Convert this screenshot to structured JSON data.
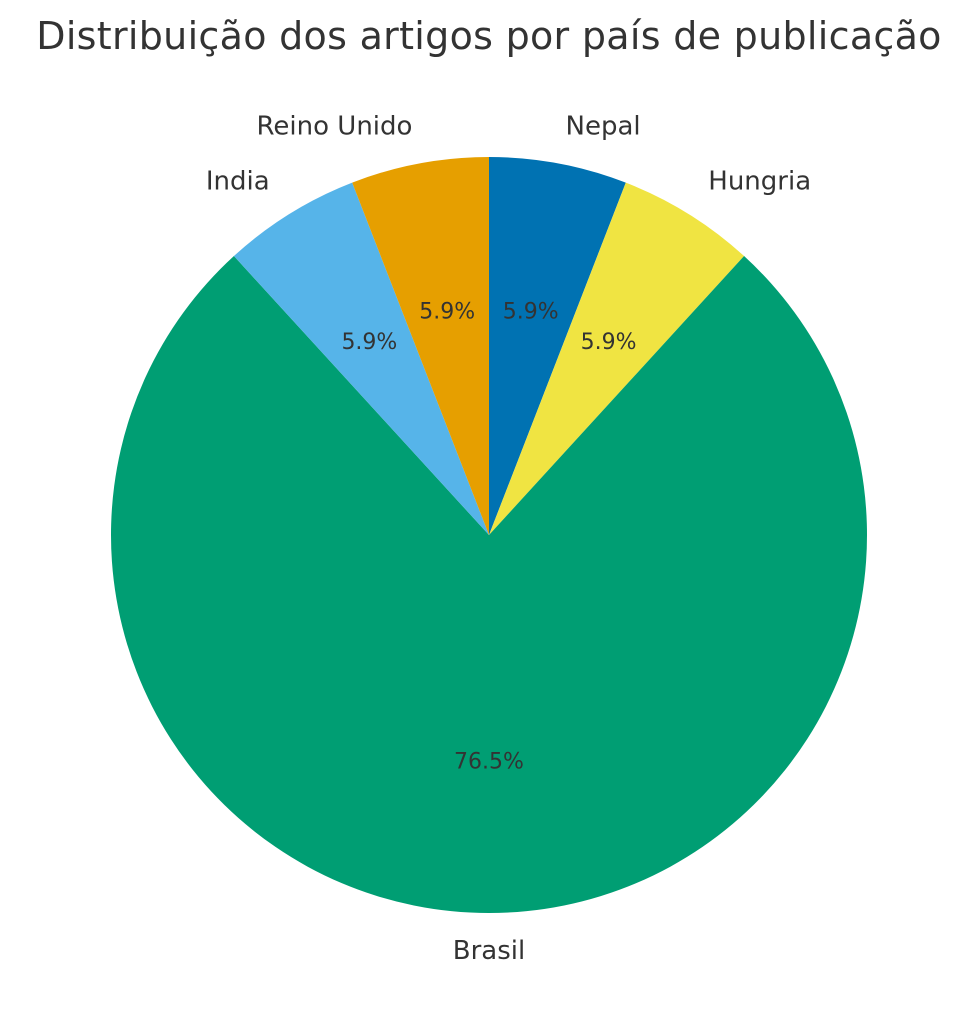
{
  "chart_data": {
    "type": "pie",
    "title": "Distribuição dos artigos por país de publicação",
    "slices": [
      {
        "label": "Brasil",
        "value": 76.5,
        "value_label": "76.5%",
        "color": "#009E73"
      },
      {
        "label": "Nepal",
        "value": 5.9,
        "value_label": "5.9%",
        "color": "#0072B2"
      },
      {
        "label": "Hungria",
        "value": 5.9,
        "value_label": "5.9%",
        "color": "#F0E442"
      },
      {
        "label": "India",
        "value": 5.9,
        "value_label": "5.9%",
        "color": "#56B4E9"
      },
      {
        "label": "Reino Unido",
        "value": 5.9,
        "value_label": "5.9%",
        "color": "#E69F00"
      }
    ],
    "legend": "none"
  }
}
